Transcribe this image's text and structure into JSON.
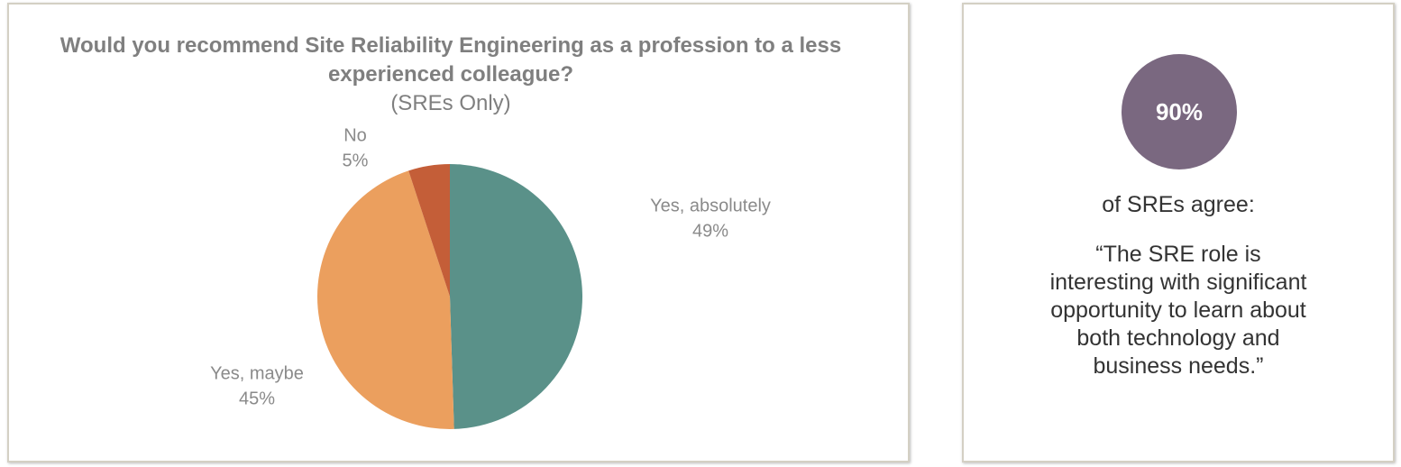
{
  "chart_data": {
    "type": "pie",
    "title": "Would you recommend Site Reliability Engineering as a profession to a less experienced colleague?",
    "subtitle": "(SREs Only)",
    "categories": [
      "Yes, absolutely",
      "Yes, maybe",
      "No"
    ],
    "values": [
      49,
      45,
      5
    ],
    "value_labels": [
      "49%",
      "45%",
      "5%"
    ],
    "colors": [
      "#5a9189",
      "#eb9f5e",
      "#c45e38"
    ]
  },
  "callout": {
    "stat": "90%",
    "lead": "of SREs agree:",
    "quote": "“The SRE role is interesting with significant opportunity to learn about both technology and business needs.”"
  }
}
